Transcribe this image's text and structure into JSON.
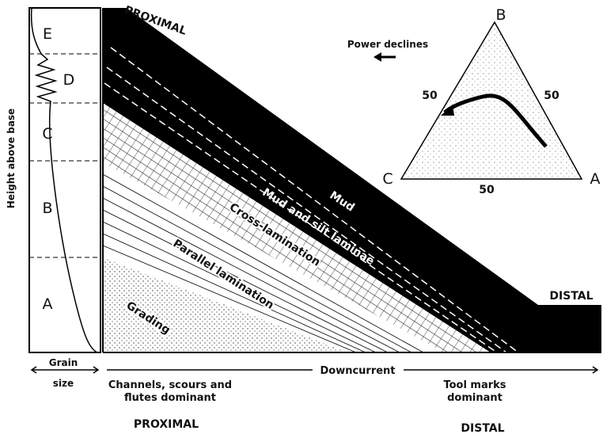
{
  "column": {
    "axis_label": "Height above base",
    "divisions": [
      "E",
      "D",
      "C",
      "B",
      "A"
    ],
    "grain_label": [
      "Grain",
      "size"
    ]
  },
  "wedge": {
    "top_label": "PROXIMAL",
    "right_label": "DISTAL",
    "layers": [
      "Mud",
      "Mud and silt laminae",
      "Cross-lamination",
      "Parallel lamination",
      "Grading"
    ]
  },
  "triangle": {
    "arrow_label": "Power declines",
    "vertices": [
      "B",
      "C",
      "A"
    ],
    "ticks": [
      "50",
      "50",
      "50"
    ]
  },
  "bottom": {
    "axis_label": "Downcurrent",
    "proximal": {
      "note": [
        "Channels, scours and",
        "flutes dominant"
      ],
      "label": "PROXIMAL"
    },
    "distal": {
      "note": [
        "Tool marks",
        "dominant"
      ],
      "label": "DISTAL"
    }
  }
}
